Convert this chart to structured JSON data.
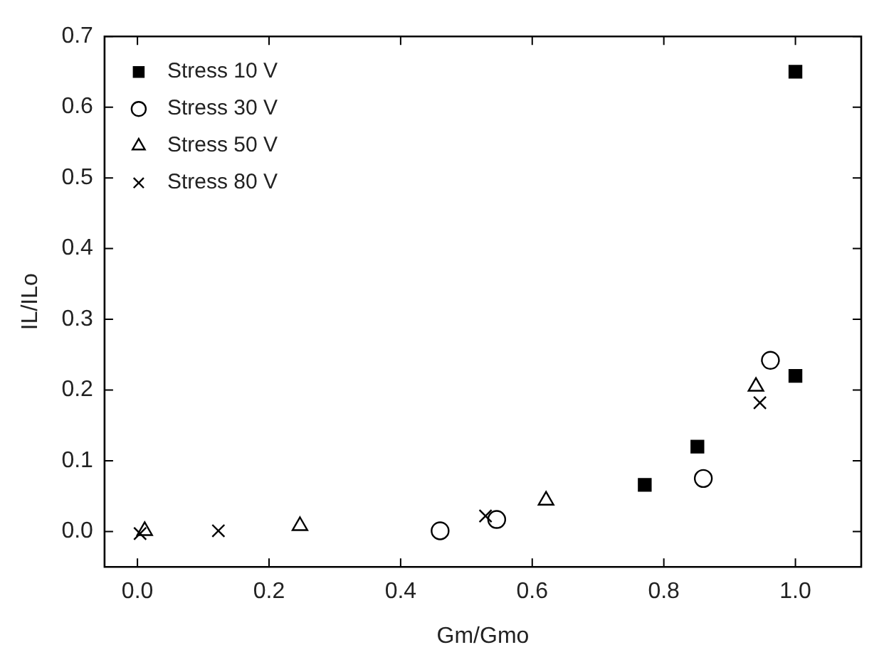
{
  "chart_data": {
    "type": "scatter",
    "xlabel": "Gm/Gmo",
    "ylabel": "IL/ILo",
    "xlim": [
      -0.05,
      1.1
    ],
    "xticks": [
      {
        "value": 0,
        "label": "0.0"
      },
      0.2,
      0.4,
      0.6,
      0.8,
      {
        "value": 1,
        "label": "1.0"
      }
    ],
    "ylim": [
      -0.05,
      0.7
    ],
    "yticks": [
      {
        "value": 0,
        "label": "0.0"
      },
      0.1,
      0.2,
      0.3,
      0.4,
      0.5,
      0.6,
      0.7
    ],
    "grid": false,
    "legend": "top left",
    "series": [
      {
        "name": "Stress 10 V",
        "color": "#000000",
        "marker": "square",
        "x": [
          0.771,
          0.851,
          1.0,
          1.0
        ],
        "values": [
          0.066,
          0.12,
          0.22,
          0.65
        ]
      },
      {
        "name": "Stress 30 V",
        "color": "#000000",
        "marker": "circle",
        "x": [
          0.46,
          0.546,
          0.86,
          0.962
        ],
        "values": [
          0.001,
          0.017,
          0.075,
          0.242
        ]
      },
      {
        "name": "Stress 50 V",
        "color": "#000000",
        "marker": "triangle",
        "x": [
          0.011,
          0.247,
          0.621,
          0.94
        ],
        "values": [
          0.001,
          0.008,
          0.044,
          0.205
        ]
      },
      {
        "name": "Stress 80 V",
        "color": "#000000",
        "marker": "cross",
        "x": [
          0.004,
          0.123,
          0.529,
          0.946
        ],
        "values": [
          -0.003,
          0.001,
          0.022,
          0.182
        ]
      }
    ]
  }
}
